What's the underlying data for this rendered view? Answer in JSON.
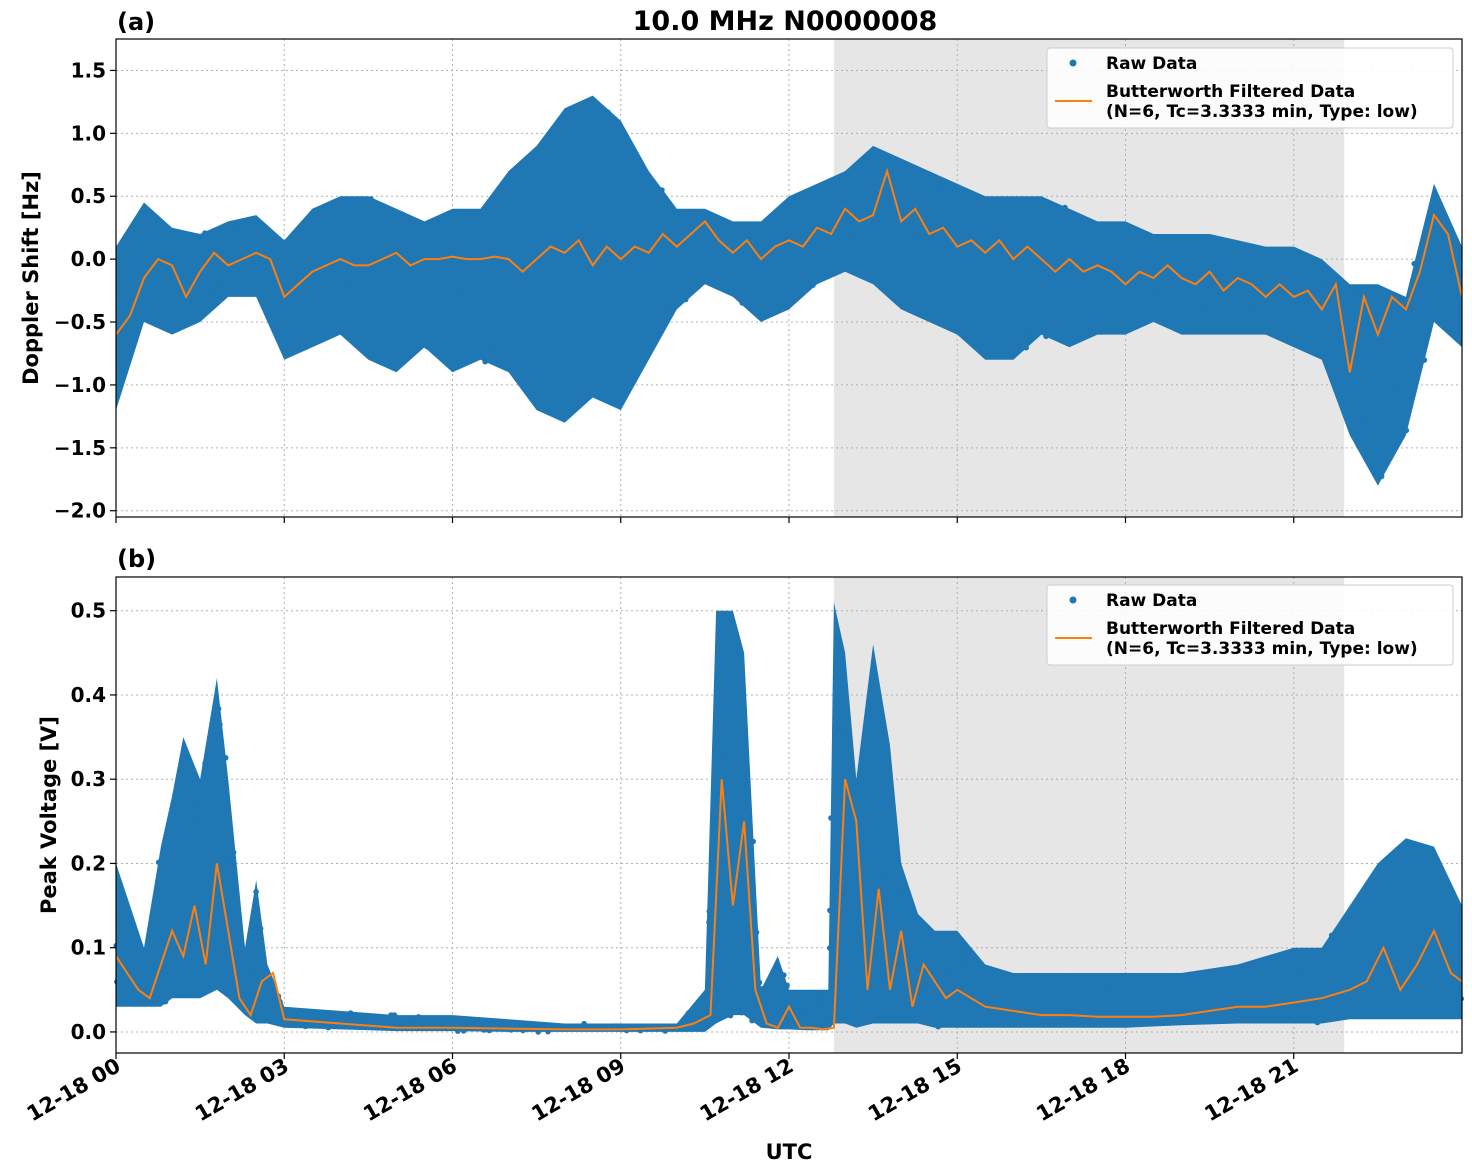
{
  "title": "10.0 MHz N0000008",
  "xlabel": "UTC",
  "colors": {
    "raw": "#1f77b4",
    "filtered": "#ff7f0e",
    "shade": "#e6e6e6",
    "grid": "#b0b0b0"
  },
  "x_ticks": [
    "12-18 00",
    "12-18 03",
    "12-18 06",
    "12-18 09",
    "12-18 12",
    "12-18 15",
    "12-18 18",
    "12-18 21"
  ],
  "legend": {
    "raw": "Raw Data",
    "filtered_line1": "Butterworth Filtered Data",
    "filtered_line2": "(N=6, Tc=3.3333 min, Type: low)"
  },
  "chart_data": [
    {
      "type": "scatter",
      "panel_label": "(a)",
      "ylabel": "Doppler Shift [Hz]",
      "xlim_hours": [
        0,
        24
      ],
      "ylim": [
        -2.05,
        1.75
      ],
      "y_ticks": [
        "1.5",
        "1.0",
        "0.5",
        "0.0",
        "−0.5",
        "−1.0",
        "−1.5",
        "−2.0"
      ],
      "y_tick_values": [
        1.5,
        1.0,
        0.5,
        0.0,
        -0.5,
        -1.0,
        -1.5,
        -2.0
      ],
      "shaded_region_hours": [
        12.8,
        21.9
      ],
      "grid": true,
      "legend_position": "upper-right",
      "series": [
        {
          "name": "Raw Data",
          "style": "points",
          "x_hours": [
            0,
            0.5,
            1,
            1.5,
            2,
            2.5,
            3,
            3.5,
            4,
            4.5,
            5,
            5.5,
            6,
            6.5,
            7,
            7.5,
            8,
            8.5,
            9,
            9.5,
            10,
            10.5,
            11,
            11.5,
            12,
            12.5,
            13,
            13.5,
            14,
            14.5,
            15,
            15.5,
            16,
            16.5,
            17,
            17.5,
            18,
            18.5,
            19,
            19.5,
            20,
            20.5,
            21,
            21.5,
            22,
            22.5,
            23,
            23.5,
            24
          ],
          "upper": [
            0.1,
            0.45,
            0.25,
            0.2,
            0.3,
            0.35,
            0.15,
            0.4,
            0.5,
            0.5,
            0.4,
            0.3,
            0.4,
            0.4,
            0.7,
            0.9,
            1.2,
            1.3,
            1.1,
            0.7,
            0.4,
            0.4,
            0.3,
            0.3,
            0.5,
            0.6,
            0.7,
            0.9,
            0.8,
            0.7,
            0.6,
            0.5,
            0.5,
            0.5,
            0.4,
            0.3,
            0.3,
            0.2,
            0.2,
            0.2,
            0.15,
            0.1,
            0.1,
            0.0,
            -0.2,
            -0.2,
            -0.3,
            0.6,
            0.1
          ],
          "lower": [
            -1.2,
            -0.5,
            -0.6,
            -0.5,
            -0.3,
            -0.3,
            -0.8,
            -0.7,
            -0.6,
            -0.8,
            -0.9,
            -0.7,
            -0.9,
            -0.8,
            -0.9,
            -1.2,
            -1.3,
            -1.1,
            -1.2,
            -0.8,
            -0.4,
            -0.2,
            -0.3,
            -0.5,
            -0.4,
            -0.2,
            -0.1,
            -0.2,
            -0.4,
            -0.5,
            -0.6,
            -0.8,
            -0.8,
            -0.6,
            -0.7,
            -0.6,
            -0.6,
            -0.5,
            -0.6,
            -0.6,
            -0.6,
            -0.6,
            -0.7,
            -0.8,
            -1.4,
            -1.8,
            -1.4,
            -0.5,
            -0.7
          ]
        },
        {
          "name": "Butterworth Filtered Data",
          "style": "line",
          "x_hours": [
            0,
            0.25,
            0.5,
            0.75,
            1,
            1.25,
            1.5,
            1.75,
            2,
            2.25,
            2.5,
            2.75,
            3,
            3.25,
            3.5,
            3.75,
            4,
            4.25,
            4.5,
            4.75,
            5,
            5.25,
            5.5,
            5.75,
            6,
            6.25,
            6.5,
            6.75,
            7,
            7.25,
            7.5,
            7.75,
            8,
            8.25,
            8.5,
            8.75,
            9,
            9.25,
            9.5,
            9.75,
            10,
            10.25,
            10.5,
            10.75,
            11,
            11.25,
            11.5,
            11.75,
            12,
            12.25,
            12.5,
            12.75,
            13,
            13.25,
            13.5,
            13.75,
            14,
            14.25,
            14.5,
            14.75,
            15,
            15.25,
            15.5,
            15.75,
            16,
            16.25,
            16.5,
            16.75,
            17,
            17.25,
            17.5,
            17.75,
            18,
            18.25,
            18.5,
            18.75,
            19,
            19.25,
            19.5,
            19.75,
            20,
            20.25,
            20.5,
            20.75,
            21,
            21.25,
            21.5,
            21.75,
            22,
            22.25,
            22.5,
            22.75,
            23,
            23.25,
            23.5,
            23.75,
            24
          ],
          "values": [
            -0.6,
            -0.45,
            -0.15,
            0.0,
            -0.05,
            -0.3,
            -0.1,
            0.05,
            -0.05,
            0.0,
            0.05,
            0.0,
            -0.3,
            -0.2,
            -0.1,
            -0.05,
            0.0,
            -0.05,
            -0.05,
            0.0,
            0.05,
            -0.05,
            0.0,
            0.0,
            0.02,
            0.0,
            0.0,
            0.02,
            0.0,
            -0.1,
            0.0,
            0.1,
            0.05,
            0.15,
            -0.05,
            0.1,
            0.0,
            0.1,
            0.05,
            0.2,
            0.1,
            0.2,
            0.3,
            0.15,
            0.05,
            0.15,
            0.0,
            0.1,
            0.15,
            0.1,
            0.25,
            0.2,
            0.4,
            0.3,
            0.35,
            0.7,
            0.3,
            0.4,
            0.2,
            0.25,
            0.1,
            0.15,
            0.05,
            0.15,
            0.0,
            0.1,
            0.0,
            -0.1,
            0.0,
            -0.1,
            -0.05,
            -0.1,
            -0.2,
            -0.1,
            -0.15,
            -0.05,
            -0.15,
            -0.2,
            -0.1,
            -0.25,
            -0.15,
            -0.2,
            -0.3,
            -0.2,
            -0.3,
            -0.25,
            -0.4,
            -0.2,
            -0.9,
            -0.3,
            -0.6,
            -0.3,
            -0.4,
            -0.1,
            0.35,
            0.2,
            -0.3
          ]
        }
      ]
    },
    {
      "type": "scatter",
      "panel_label": "(b)",
      "ylabel": "Peak Voltage [V]",
      "xlim_hours": [
        0,
        24
      ],
      "ylim": [
        -0.025,
        0.54
      ],
      "y_ticks": [
        "0.5",
        "0.4",
        "0.3",
        "0.2",
        "0.1",
        "0.0"
      ],
      "y_tick_values": [
        0.5,
        0.4,
        0.3,
        0.2,
        0.1,
        0.0
      ],
      "shaded_region_hours": [
        12.8,
        21.9
      ],
      "grid": true,
      "legend_position": "upper-right",
      "series": [
        {
          "name": "Raw Data",
          "style": "points",
          "x_hours": [
            0,
            0.5,
            0.8,
            1,
            1.2,
            1.5,
            1.8,
            2,
            2.3,
            2.5,
            2.7,
            3,
            4,
            5,
            6,
            7,
            8,
            9,
            10,
            10.5,
            10.7,
            11,
            11.2,
            11.5,
            11.8,
            12,
            12.3,
            12.7,
            12.8,
            13,
            13.2,
            13.5,
            13.8,
            14,
            14.3,
            14.6,
            15,
            15.5,
            16,
            17,
            18,
            19,
            20,
            21,
            21.5,
            22,
            22.5,
            23,
            23.5,
            24
          ],
          "upper": [
            0.2,
            0.1,
            0.22,
            0.28,
            0.35,
            0.3,
            0.42,
            0.3,
            0.1,
            0.18,
            0.08,
            0.03,
            0.025,
            0.02,
            0.02,
            0.015,
            0.01,
            0.01,
            0.01,
            0.05,
            0.5,
            0.5,
            0.45,
            0.05,
            0.09,
            0.05,
            0.05,
            0.05,
            0.51,
            0.45,
            0.3,
            0.46,
            0.34,
            0.2,
            0.14,
            0.12,
            0.12,
            0.08,
            0.07,
            0.07,
            0.07,
            0.07,
            0.08,
            0.1,
            0.1,
            0.15,
            0.2,
            0.23,
            0.22,
            0.15
          ],
          "lower": [
            0.03,
            0.03,
            0.03,
            0.04,
            0.04,
            0.04,
            0.05,
            0.04,
            0.02,
            0.01,
            0.01,
            0.005,
            0.003,
            0.001,
            0.001,
            0.0,
            0.0,
            0.0,
            0.0,
            0.0,
            0.01,
            0.02,
            0.02,
            0.005,
            0.003,
            0.003,
            0.002,
            0.002,
            0.01,
            0.01,
            0.005,
            0.01,
            0.01,
            0.01,
            0.01,
            0.005,
            0.005,
            0.005,
            0.005,
            0.005,
            0.005,
            0.008,
            0.01,
            0.01,
            0.01,
            0.015,
            0.015,
            0.015,
            0.015,
            0.015
          ]
        },
        {
          "name": "Butterworth Filtered Data",
          "style": "line",
          "x_hours": [
            0,
            0.2,
            0.4,
            0.6,
            0.8,
            1,
            1.2,
            1.4,
            1.6,
            1.8,
            2,
            2.2,
            2.4,
            2.6,
            2.8,
            3,
            4,
            5,
            6,
            7,
            8,
            9,
            10,
            10.3,
            10.6,
            10.8,
            11,
            11.2,
            11.4,
            11.6,
            11.8,
            12,
            12.2,
            12.4,
            12.6,
            12.8,
            13,
            13.2,
            13.4,
            13.6,
            13.8,
            14,
            14.2,
            14.4,
            14.6,
            14.8,
            15,
            15.5,
            16,
            16.5,
            17,
            17.5,
            18,
            18.5,
            19,
            19.5,
            20,
            20.5,
            21,
            21.5,
            22,
            22.3,
            22.6,
            22.9,
            23.2,
            23.5,
            23.8,
            24
          ],
          "values": [
            0.09,
            0.07,
            0.05,
            0.04,
            0.08,
            0.12,
            0.09,
            0.15,
            0.08,
            0.2,
            0.12,
            0.04,
            0.02,
            0.06,
            0.07,
            0.015,
            0.01,
            0.005,
            0.005,
            0.004,
            0.003,
            0.003,
            0.005,
            0.01,
            0.02,
            0.3,
            0.15,
            0.25,
            0.05,
            0.01,
            0.005,
            0.03,
            0.005,
            0.005,
            0.003,
            0.005,
            0.3,
            0.25,
            0.05,
            0.17,
            0.05,
            0.12,
            0.03,
            0.08,
            0.06,
            0.04,
            0.05,
            0.03,
            0.025,
            0.02,
            0.02,
            0.018,
            0.018,
            0.018,
            0.02,
            0.025,
            0.03,
            0.03,
            0.035,
            0.04,
            0.05,
            0.06,
            0.1,
            0.05,
            0.08,
            0.12,
            0.07,
            0.06
          ]
        }
      ]
    }
  ]
}
